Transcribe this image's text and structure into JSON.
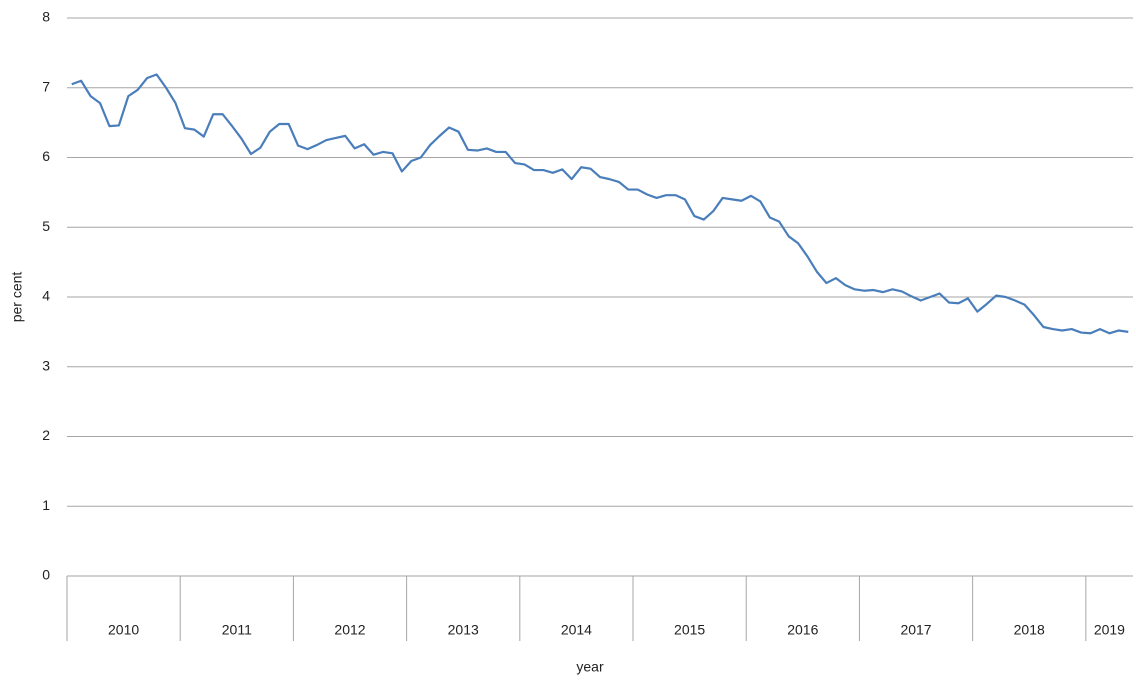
{
  "chart_data": {
    "type": "line",
    "y_label": "per cent",
    "x_label": "year",
    "categories": [
      "2010",
      null,
      null,
      null,
      null,
      null,
      null,
      null,
      null,
      null,
      null,
      null,
      "2011",
      null,
      null,
      null,
      null,
      null,
      null,
      null,
      null,
      null,
      null,
      null,
      "2012",
      null,
      null,
      null,
      null,
      null,
      null,
      null,
      null,
      null,
      null,
      null,
      "2013",
      null,
      null,
      null,
      null,
      null,
      null,
      null,
      null,
      null,
      null,
      null,
      "2014",
      null,
      null,
      null,
      null,
      null,
      null,
      null,
      null,
      null,
      null,
      null,
      "2015",
      null,
      null,
      null,
      null,
      null,
      null,
      null,
      null,
      null,
      null,
      null,
      "2016",
      null,
      null,
      null,
      null,
      null,
      null,
      null,
      null,
      null,
      null,
      null,
      "2017",
      null,
      null,
      null,
      null,
      null,
      null,
      null,
      null,
      null,
      null,
      null,
      "2018",
      null,
      null,
      null,
      null,
      null,
      null,
      null,
      null,
      null,
      null,
      null,
      "2019",
      null,
      null,
      null,
      null
    ],
    "series": [
      {
        "color": "#4a7ebb",
        "values": [
          7.05,
          7.1,
          6.88,
          6.78,
          6.45,
          6.46,
          6.88,
          6.97,
          7.14,
          7.19,
          7.0,
          6.78,
          6.42,
          6.4,
          6.3,
          6.62,
          6.62,
          6.45,
          6.27,
          6.05,
          6.14,
          6.37,
          6.48,
          6.48,
          6.17,
          6.12,
          6.18,
          6.25,
          6.28,
          6.31,
          6.13,
          6.19,
          6.04,
          6.08,
          6.06,
          5.8,
          5.95,
          6.0,
          6.18,
          6.31,
          6.43,
          6.37,
          6.11,
          6.1,
          6.13,
          6.08,
          6.08,
          5.92,
          5.9,
          5.82,
          5.82,
          5.78,
          5.83,
          5.69,
          5.86,
          5.84,
          5.72,
          5.69,
          5.65,
          5.54,
          5.54,
          5.47,
          5.42,
          5.46,
          5.46,
          5.4,
          5.16,
          5.11,
          5.23,
          5.42,
          5.4,
          5.38,
          5.45,
          5.37,
          5.14,
          5.08,
          4.87,
          4.77,
          4.58,
          4.36,
          4.2,
          4.27,
          4.17,
          4.11,
          4.09,
          4.1,
          4.07,
          4.11,
          4.08,
          4.01,
          3.95,
          4.0,
          4.05,
          3.92,
          3.91,
          3.98,
          3.79,
          3.9,
          4.02,
          4.0,
          3.95,
          3.89,
          3.74,
          3.57,
          3.54,
          3.52,
          3.54,
          3.49,
          3.48,
          3.54,
          3.48,
          3.52,
          3.5
        ]
      }
    ],
    "ylim": [
      0,
      8
    ],
    "yticks": [
      0,
      1,
      2,
      3,
      4,
      5,
      6,
      7,
      8
    ],
    "grid": true
  }
}
